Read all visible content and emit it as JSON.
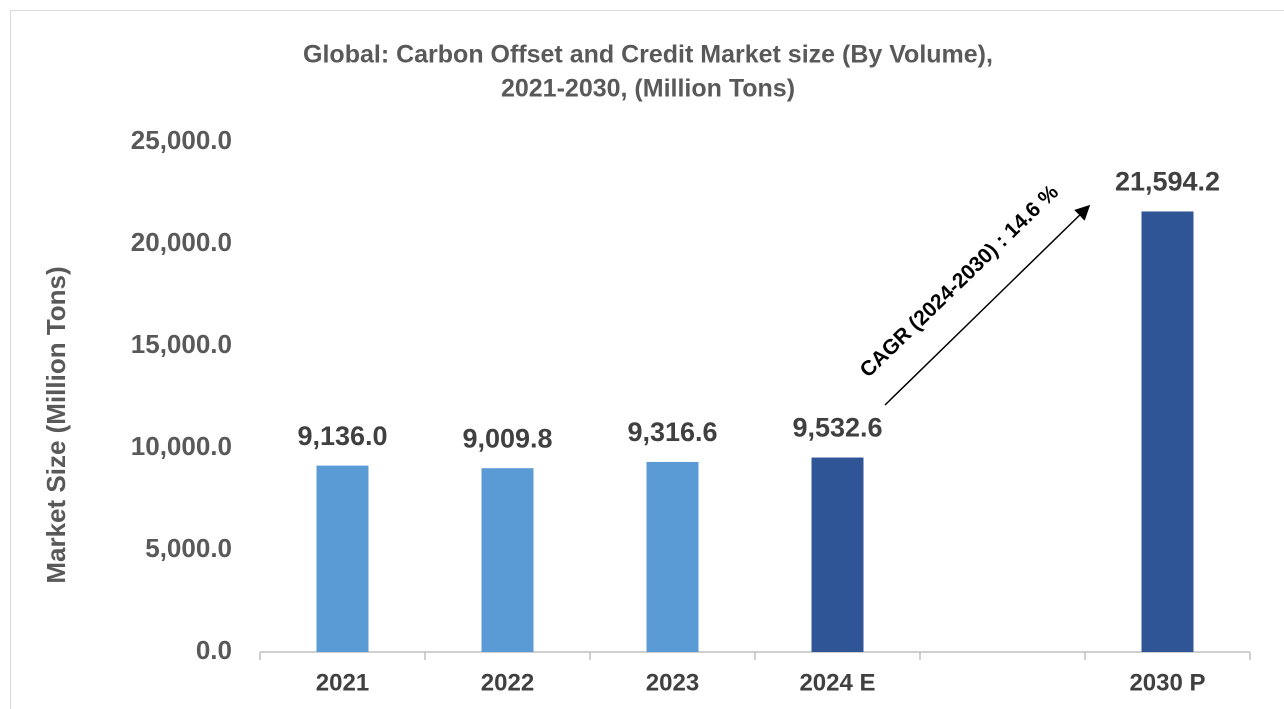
{
  "chart_data": {
    "type": "bar",
    "title": [
      "Global:  Carbon Offset and Credit Market size (By Volume),",
      "2021-2030, (Million  Tons)"
    ],
    "y_axis_label": "Market Size (Million  Tons)",
    "annotation": "CAGR (2024-2030) : 14.6 %",
    "categories": [
      "2021",
      "2022",
      "2023",
      "2024 E",
      null,
      "2030 P"
    ],
    "values": [
      9136.0,
      9009.8,
      9316.6,
      9532.6,
      null,
      21594.2
    ],
    "value_labels": [
      "9,136.0",
      "9,009.8",
      "9,316.6",
      "9,532.6",
      null,
      "21,594.2"
    ],
    "colors": [
      "#5b9bd5",
      "#5b9bd5",
      "#5b9bd5",
      "#2f5597",
      null,
      "#2f5597"
    ],
    "ylim": [
      0,
      25000
    ],
    "yticks": [
      {
        "value": 0,
        "label": "0.0"
      },
      {
        "value": 5000,
        "label": "5,000.0"
      },
      {
        "value": 10000,
        "label": "10,000.0"
      },
      {
        "value": 15000,
        "label": "15,000.0"
      },
      {
        "value": 20000,
        "label": "20,000.0"
      },
      {
        "value": 25000,
        "label": "25,000.0"
      }
    ],
    "grid": false
  }
}
